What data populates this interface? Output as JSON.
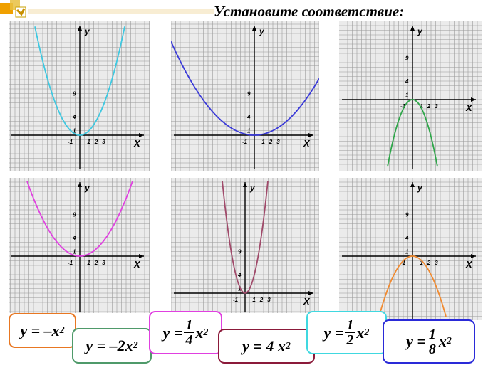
{
  "title": "Установите соответствие:",
  "graph_labels": {
    "x_axis": "X",
    "y_axis": "y",
    "tick_neg1": "-1",
    "tick_1": "1",
    "tick_2": "2",
    "tick_3": "3",
    "tick_y1": "1",
    "tick_y4": "4",
    "tick_y9": "9"
  },
  "colors": {
    "cyan": "#3ec8e0",
    "blue": "#3a3ad8",
    "green": "#2fa64a",
    "magenta": "#e040e0",
    "maroon": "#a04a6a",
    "orange": "#f08a30"
  },
  "formulas": {
    "orange": {
      "lhs": "y",
      "eq": "=",
      "rhs": "–x",
      "exp": "2"
    },
    "green": {
      "lhs": "y",
      "eq": "=",
      "rhs": "–2x",
      "exp": "2"
    },
    "pink": {
      "lhs": "y",
      "eq": "=",
      "num": "1",
      "den": "4",
      "var": "x",
      "exp": "2"
    },
    "maroon": {
      "lhs": "y",
      "eq": "=",
      "rhs": "4 x",
      "exp": "2"
    },
    "cyan": {
      "lhs": "y",
      "eq": "=",
      "num": "1",
      "den": "2",
      "var": "x",
      "exp": "2"
    },
    "blue": {
      "lhs": "y",
      "eq": "=",
      "num": "1",
      "den": "8",
      "var": "x",
      "exp": "2"
    }
  }
}
